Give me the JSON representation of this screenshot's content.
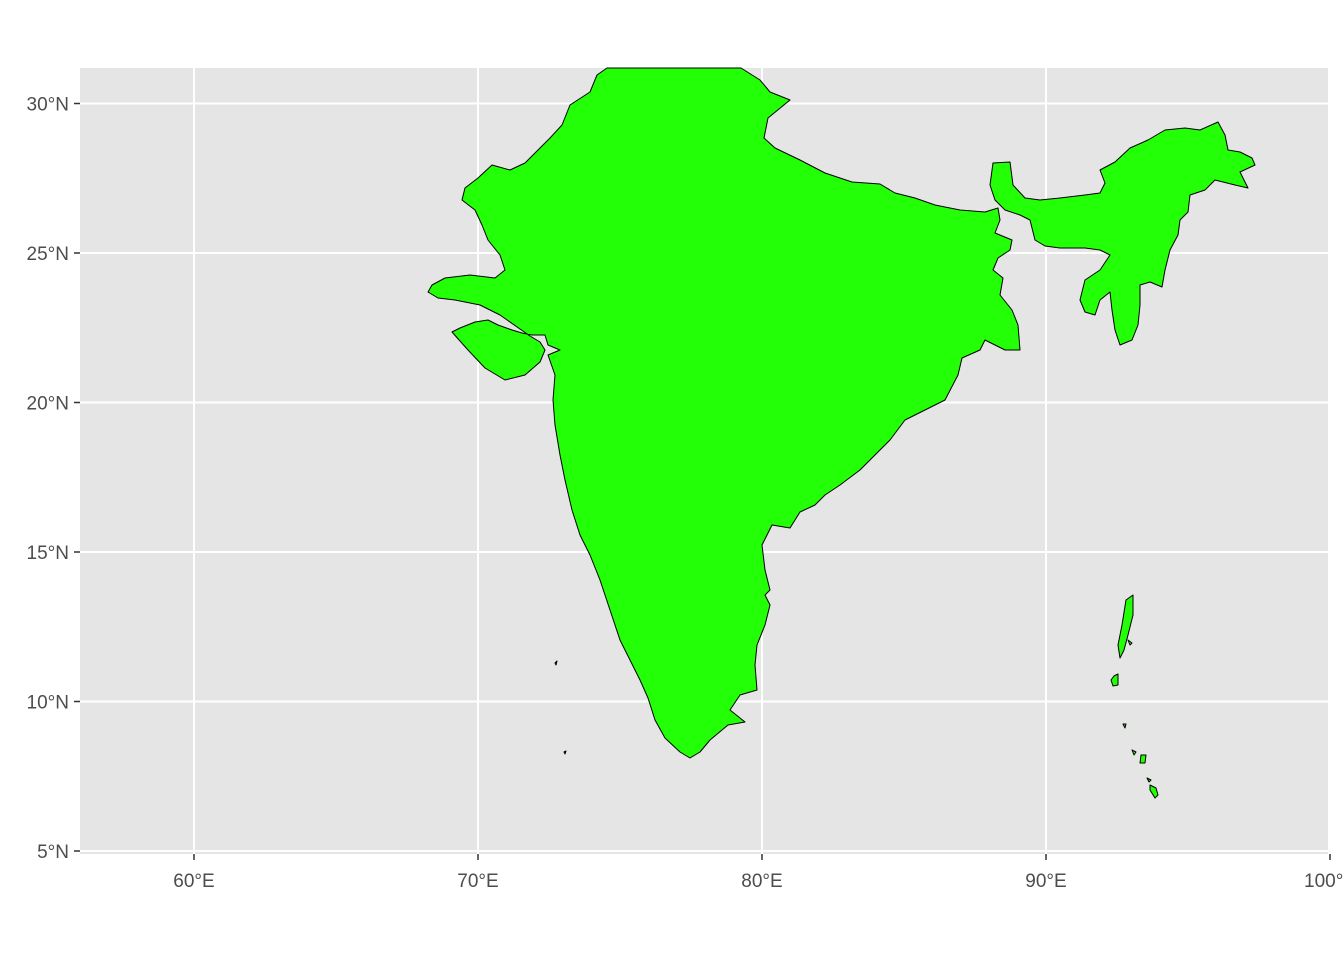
{
  "map": {
    "colors": {
      "panel_background": "#e5e5e5",
      "grid": "#ffffff",
      "land_fill": "#22ff06",
      "land_stroke": "#000000",
      "tick_text": "#4d4d4d",
      "tick_mark": "#333333"
    },
    "region": "India",
    "lon_range": [
      56,
      100
    ],
    "lat_range": [
      5,
      31.2
    ],
    "x_ticks": [
      {
        "value": 60,
        "label": "60°E"
      },
      {
        "value": 70,
        "label": "70°E"
      },
      {
        "value": 80,
        "label": "80°E"
      },
      {
        "value": 90,
        "label": "90°E"
      },
      {
        "value": 100,
        "label": "100°E"
      }
    ],
    "y_ticks": [
      {
        "value": 30,
        "label": "30°N"
      },
      {
        "value": 25,
        "label": "25°N"
      },
      {
        "value": 20,
        "label": "20°N"
      },
      {
        "value": 15,
        "label": "15°N"
      },
      {
        "value": 10,
        "label": "10°N"
      },
      {
        "value": 5,
        "label": "5°N"
      }
    ],
    "grid": true
  }
}
